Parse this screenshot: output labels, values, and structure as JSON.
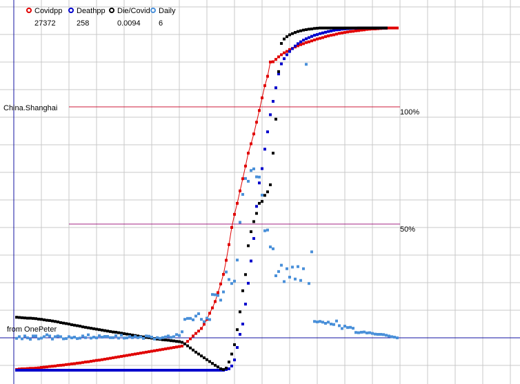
{
  "chart_data": {
    "type": "scatter",
    "title": "",
    "xlabel": "",
    "ylabel": "",
    "grid": true,
    "legend_position": "top-left",
    "region_label": "China.Shanghai",
    "source_label": "from OnePeter",
    "ref_lines": [
      {
        "label": "100%",
        "value": 100
      },
      {
        "label": "50%",
        "value": 50
      }
    ],
    "x": [
      1,
      2,
      3,
      4,
      5,
      6,
      7,
      8,
      9,
      10,
      11,
      12,
      13,
      14,
      15,
      16,
      17,
      18,
      19,
      20,
      21,
      22,
      23,
      24,
      25,
      26,
      27,
      28,
      29,
      30,
      31,
      32,
      33,
      34,
      35,
      36,
      37,
      38,
      39,
      40,
      41,
      42,
      43,
      44,
      45,
      46,
      47,
      48,
      49,
      50,
      51,
      52,
      53,
      54,
      55,
      56,
      57,
      58,
      59,
      60,
      61,
      62,
      63,
      64,
      65,
      66,
      67,
      68,
      69,
      70,
      71,
      72,
      73,
      74,
      75,
      76,
      77,
      78,
      79,
      80,
      81,
      82,
      83,
      84,
      85,
      86,
      87,
      88,
      89,
      90,
      91,
      92,
      93,
      94,
      95,
      96,
      97,
      98,
      99,
      100,
      101,
      102,
      103,
      104,
      105,
      106,
      107,
      108,
      109,
      110,
      111,
      112,
      113,
      114,
      115,
      116,
      117,
      118,
      119,
      120,
      121,
      122,
      123,
      124,
      125,
      126,
      127,
      128,
      129,
      130,
      131,
      132,
      133,
      134,
      135,
      136,
      137,
      138,
      139
    ],
    "series": [
      {
        "name": "Covidpp",
        "color": "#e00000",
        "marker": "circle",
        "latest_value": "27372",
        "values": [
          0.3,
          0.5,
          0.6,
          0.6,
          0.7,
          0.8,
          0.8,
          0.9,
          1.0,
          1.2,
          1.3,
          1.4,
          1.6,
          1.7,
          1.8,
          2.0,
          2.1,
          2.2,
          2.4,
          2.5,
          2.7,
          2.8,
          3.0,
          3.1,
          3.3,
          3.5,
          3.6,
          3.8,
          4.0,
          4.2,
          4.3,
          4.5,
          4.7,
          4.9,
          5.1,
          5.3,
          5.5,
          5.7,
          5.9,
          6.1,
          6.3,
          6.5,
          6.7,
          6.9,
          7.1,
          7.3,
          7.5,
          7.7,
          7.9,
          8.1,
          8.3,
          8.5,
          8.7,
          8.9,
          9.1,
          9.3,
          9.5,
          9.7,
          9.9,
          10.1,
          10.3,
          11.3,
          12.3,
          13.4,
          14.6,
          15.7,
          16.7,
          17.8,
          19.6,
          21.7,
          24.3,
          26.6,
          29.3,
          33.1,
          36.8,
          40.9,
          46.9,
          53.6,
          60.9,
          66.5,
          71.2,
          76.5,
          81.7,
          87.1,
          92.6,
          96.6,
          100.8,
          105.8,
          110.8,
          116.2,
          121.4,
          125.4,
          131.5,
          131.6,
          132.6,
          133.7,
          134.6,
          135.4,
          136.0,
          136.8,
          137.3,
          137.9,
          138.4,
          138.9,
          139.3,
          139.8,
          140.1,
          140.5,
          140.9,
          141.3,
          141.6,
          141.9,
          142.3,
          142.6,
          142.9,
          143.1,
          143.4,
          143.7,
          143.9,
          144.1,
          144.3,
          144.5,
          144.6,
          144.8,
          144.9,
          145.1,
          145.2,
          145.4,
          145.5,
          145.6,
          145.6,
          145.7,
          145.8,
          145.9,
          145.9,
          146.0,
          146.0,
          146.0,
          146.0
        ]
      },
      {
        "name": "Deathpp",
        "color": "#0000cc",
        "marker": "circle",
        "latest_value": "258",
        "values": [
          0,
          0,
          0,
          0,
          0,
          0,
          0,
          0,
          0,
          0,
          0,
          0,
          0,
          0,
          0,
          0,
          0,
          0,
          0,
          0,
          0,
          0,
          0,
          0,
          0,
          0,
          0,
          0,
          0,
          0,
          0,
          0,
          0,
          0,
          0,
          0,
          0,
          0,
          0,
          0,
          0,
          0,
          0,
          0,
          0,
          0,
          0,
          0,
          0,
          0,
          0,
          0,
          0,
          0,
          0,
          0,
          0,
          0,
          0,
          0,
          0,
          0,
          0,
          0,
          0,
          0,
          0,
          0,
          0,
          0,
          0,
          0,
          0,
          0,
          0,
          0,
          0.3,
          0.6,
          1.8,
          4.4,
          9.7,
          15.3,
          19.7,
          28.2,
          37.1,
          46.6,
          56.2,
          69.9,
          79.9,
          86.0,
          94.3,
          101.7,
          109.0,
          114.7,
          120.5,
          126.4,
          130.7,
          132.9,
          134.6,
          136.0,
          137.2,
          138.3,
          139.3,
          140.1,
          140.8,
          141.4,
          141.9,
          142.4,
          142.9,
          143.2,
          143.6,
          143.9,
          144.2,
          144.5,
          144.7,
          145.0,
          145.2,
          145.3,
          145.5,
          145.6,
          145.7,
          145.8,
          145.9,
          145.9,
          146.0,
          146.0,
          146.0,
          146.0,
          146.0,
          146.0,
          146.0,
          146.0,
          146.0,
          146.0,
          146.0
        ]
      },
      {
        "name": "Die/Covid",
        "color": "#000000",
        "marker": "circle",
        "latest_value": "0.0094",
        "values": [
          22.6,
          22.5,
          22.4,
          22.3,
          22.2,
          22.2,
          22.1,
          22.0,
          21.8,
          21.7,
          21.5,
          21.3,
          21.2,
          21.0,
          20.8,
          20.6,
          20.3,
          20.1,
          19.9,
          19.7,
          19.4,
          19.2,
          19.0,
          18.8,
          18.5,
          18.3,
          18.1,
          17.9,
          17.7,
          17.5,
          17.3,
          17.1,
          16.9,
          16.7,
          16.5,
          16.3,
          16.2,
          16.0,
          15.8,
          15.6,
          15.4,
          15.2,
          15.0,
          14.8,
          14.6,
          14.4,
          14.2,
          14.0,
          13.9,
          13.7,
          13.5,
          13.3,
          13.2,
          13.0,
          12.9,
          12.8,
          12.6,
          12.5,
          12.3,
          12.2,
          11.9,
          11.2,
          10.4,
          9.5,
          8.6,
          7.7,
          6.9,
          6.1,
          5.3,
          4.5,
          3.7,
          2.9,
          2.1,
          1.4,
          0.6,
          0.3,
          0.9,
          3.5,
          6.9,
          10.9,
          17.3,
          24.9,
          33.9,
          40.8,
          53.1,
          59.1,
          63.4,
          66.9,
          71.2,
          72.0,
          74.6,
          76.1,
          79.1,
          92.6,
          107.1,
          127.4,
          139.4,
          141.3,
          142.3,
          143.1,
          143.6,
          144.1,
          144.5,
          144.8,
          145.1,
          145.3,
          145.5,
          145.6,
          145.8,
          145.9,
          146.0,
          146.0,
          146.0,
          146.0,
          146.0,
          146.0,
          146.0,
          146.0,
          146.0,
          146.0,
          146.0,
          146.0,
          146.0,
          146.0,
          146.0,
          146.0,
          146.0,
          146.0,
          146.0,
          146.0,
          146.0,
          146.0,
          146.0,
          146.0,
          146.0
        ]
      },
      {
        "name": "Daily",
        "color": "#4a90d9",
        "marker": "square",
        "latest_value": "6",
        "values": [
          13.6,
          14.3,
          13.4,
          14.6,
          13.8,
          13.2,
          14.6,
          14.6,
          13.4,
          13.7,
          14.3,
          15.1,
          14.6,
          13.3,
          14.3,
          14.6,
          14.3,
          13.4,
          13.5,
          14.3,
          13.8,
          14.1,
          13.5,
          13.7,
          14.6,
          13.9,
          15.1,
          13.7,
          14.1,
          13.8,
          14.7,
          14.1,
          14.4,
          14.4,
          13.9,
          13.9,
          14.7,
          13.7,
          14.9,
          13.7,
          13.8,
          14.4,
          13.9,
          14.4,
          13.9,
          14.2,
          13.6,
          14.6,
          14.5,
          14.1,
          13.3,
          13.9,
          13.6,
          13.9,
          14.2,
          14.6,
          14.0,
          14.3,
          15.2,
          14.8,
          16.4,
          21.7,
          22.1,
          22.1,
          21.5,
          23.1,
          24.1,
          21.7,
          20.7,
          22.2,
          21.6,
          32.3,
          32.2,
          31.9,
          29.9,
          33.4,
          41.9,
          38.7,
          37.0,
          38.0,
          47.0,
          63.1,
          75.0,
          81.8,
          80.6,
          85.2,
          85.9,
          82.5,
          82.4,
          74.7,
          59.5,
          59.8,
          52.6,
          51.8,
          40.3,
          42.1,
          44.8,
          37.8,
          43.3,
          39.7,
          44.0,
          38.9,
          44.2,
          38.3,
          43.3,
          130.5,
          37.0,
          50.5,
          20.8,
          20.6,
          20.8,
          20.5,
          20.0,
          20.5,
          19.7,
          19.5,
          21.0,
          19.0,
          17.8,
          18.8,
          18.2,
          18.3,
          17.9,
          16.1,
          16.0,
          16.2,
          16.3,
          15.9,
          16.0,
          15.7,
          15.4,
          15.3,
          15.3,
          15.2,
          14.9,
          14.6,
          14.3,
          14.1,
          13.8
        ]
      }
    ]
  }
}
